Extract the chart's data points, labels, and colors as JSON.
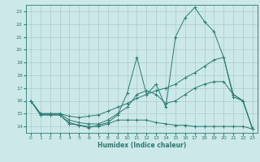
{
  "xlabel": "Humidex (Indice chaleur)",
  "bg_color": "#cce8e8",
  "grid_color": "#aacccc",
  "line_color": "#2a7a70",
  "xlim": [
    -0.5,
    23.5
  ],
  "ylim": [
    13.5,
    23.5
  ],
  "yticks": [
    14,
    15,
    16,
    17,
    18,
    19,
    20,
    21,
    22,
    23
  ],
  "xticks": [
    0,
    1,
    2,
    3,
    4,
    5,
    6,
    7,
    8,
    9,
    10,
    11,
    12,
    13,
    14,
    15,
    16,
    17,
    18,
    19,
    20,
    21,
    22,
    23
  ],
  "series": [
    {
      "x": [
        0,
        1,
        2,
        3,
        4,
        5,
        6,
        7,
        8,
        9,
        10,
        11,
        12,
        13,
        14,
        15,
        16,
        17,
        18,
        19,
        20,
        21,
        22,
        23
      ],
      "y": [
        16.0,
        14.9,
        14.9,
        14.9,
        14.3,
        14.1,
        13.9,
        14.1,
        14.3,
        14.9,
        16.6,
        19.4,
        16.5,
        17.3,
        15.5,
        21.0,
        22.5,
        23.3,
        22.2,
        21.4,
        19.4,
        16.3,
        16.0,
        13.8
      ]
    },
    {
      "x": [
        0,
        1,
        2,
        3,
        4,
        5,
        6,
        7,
        8,
        9,
        10,
        11,
        12,
        13,
        14,
        15,
        16,
        17,
        18,
        19,
        20,
        21,
        22,
        23
      ],
      "y": [
        16.0,
        15.0,
        15.0,
        15.0,
        14.8,
        14.7,
        14.8,
        14.9,
        15.2,
        15.5,
        15.8,
        16.2,
        16.5,
        16.8,
        17.0,
        17.3,
        17.8,
        18.2,
        18.7,
        19.2,
        19.4,
        16.5,
        16.0,
        13.8
      ]
    },
    {
      "x": [
        0,
        1,
        2,
        3,
        4,
        5,
        6,
        7,
        8,
        9,
        10,
        11,
        12,
        13,
        14,
        15,
        16,
        17,
        18,
        19,
        20,
        21,
        22,
        23
      ],
      "y": [
        16.0,
        15.0,
        15.0,
        15.0,
        14.5,
        14.3,
        14.2,
        14.2,
        14.5,
        15.0,
        15.5,
        16.5,
        16.8,
        16.5,
        15.8,
        16.0,
        16.5,
        17.0,
        17.3,
        17.5,
        17.5,
        16.5,
        16.0,
        13.8
      ]
    },
    {
      "x": [
        0,
        1,
        2,
        3,
        4,
        5,
        6,
        7,
        8,
        9,
        10,
        11,
        12,
        13,
        14,
        15,
        16,
        17,
        18,
        19,
        20,
        21,
        22,
        23
      ],
      "y": [
        16.0,
        14.9,
        14.9,
        14.9,
        14.2,
        14.1,
        14.0,
        14.0,
        14.2,
        14.5,
        14.5,
        14.5,
        14.5,
        14.3,
        14.2,
        14.1,
        14.1,
        14.0,
        14.0,
        14.0,
        14.0,
        14.0,
        14.0,
        13.8
      ]
    }
  ]
}
